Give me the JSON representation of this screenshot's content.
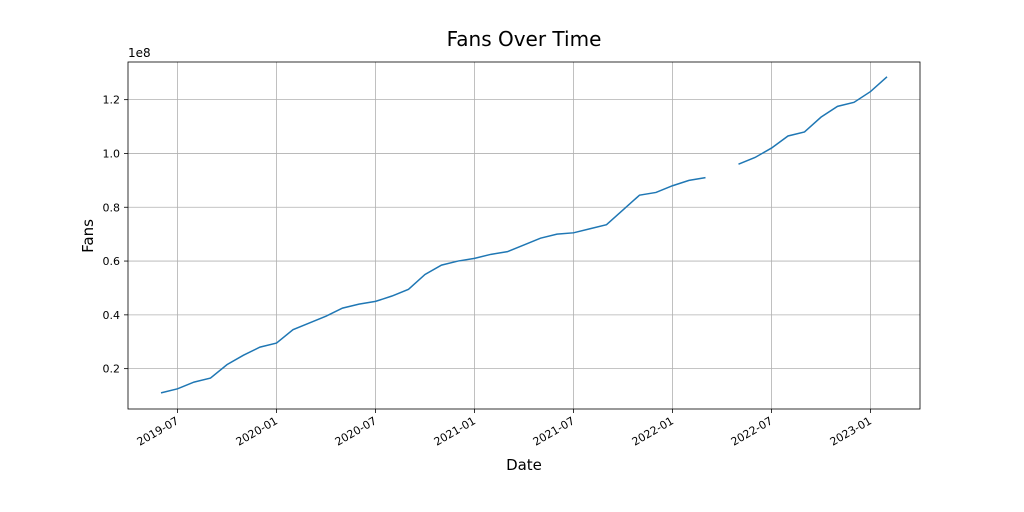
{
  "chart_data": {
    "type": "line",
    "title": "Fans Over Time",
    "x_label": "Date",
    "y_label": "Fans",
    "y_offset_label": "1e8",
    "x": [
      "2019-06",
      "2019-07",
      "2019-08",
      "2019-09",
      "2019-10",
      "2019-11",
      "2019-12",
      "2020-01",
      "2020-02",
      "2020-03",
      "2020-04",
      "2020-05",
      "2020-06",
      "2020-07",
      "2020-08",
      "2020-09",
      "2020-10",
      "2020-11",
      "2020-12",
      "2021-01",
      "2021-02",
      "2021-03",
      "2021-04",
      "2021-05",
      "2021-06",
      "2021-07",
      "2021-08",
      "2021-09",
      "2021-10",
      "2021-11",
      "2021-12",
      "2022-01",
      "2022-02",
      "2022-03",
      "2022-04",
      "2022-05",
      "2022-06",
      "2022-07",
      "2022-08",
      "2022-09",
      "2022-10",
      "2022-11",
      "2022-12",
      "2023-01",
      "2023-02"
    ],
    "series": [
      {
        "name": "Fans",
        "color": "#1f77b4",
        "values": [
          0.11,
          0.125,
          0.15,
          0.165,
          0.215,
          0.25,
          0.28,
          0.295,
          0.345,
          0.37,
          0.395,
          0.425,
          0.44,
          0.45,
          0.47,
          0.495,
          0.55,
          0.585,
          0.6,
          0.61,
          0.625,
          0.635,
          0.66,
          0.685,
          0.7,
          0.705,
          0.72,
          0.735,
          0.79,
          0.845,
          0.855,
          0.88,
          0.9,
          0.91,
          null,
          0.96,
          0.985,
          1.02,
          1.065,
          1.08,
          1.135,
          1.175,
          1.19,
          1.23,
          1.285
        ]
      }
    ],
    "xlim": [
      "2019-04",
      "2023-04"
    ],
    "xticks": [
      "2019-07",
      "2020-01",
      "2020-07",
      "2021-01",
      "2021-07",
      "2022-01",
      "2022-07",
      "2023-01"
    ],
    "ylim": [
      0.05,
      1.34
    ],
    "yticks": [
      0.2,
      0.4,
      0.6,
      0.8,
      1.0,
      1.2
    ],
    "grid": true
  }
}
